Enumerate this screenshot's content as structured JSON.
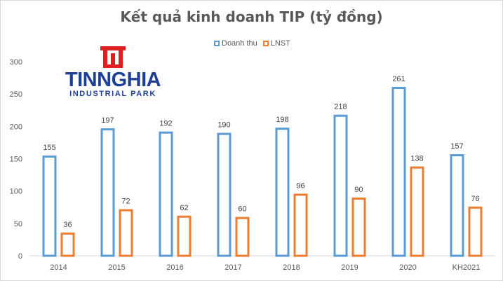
{
  "chart_data": {
    "type": "bar",
    "title": "Kết quả kinh doanh TIP (tỷ đồng)",
    "categories": [
      "2014",
      "2015",
      "2016",
      "2017",
      "2018",
      "2019",
      "2020",
      "KH2021"
    ],
    "series": [
      {
        "name": "Doanh thu",
        "color": "#5b9bd5",
        "values": [
          155,
          197,
          192,
          190,
          198,
          218,
          261,
          157
        ]
      },
      {
        "name": "LNST",
        "color": "#ed7d31",
        "values": [
          36,
          72,
          62,
          60,
          96,
          90,
          138,
          76
        ]
      }
    ],
    "ylim": [
      0,
      300
    ],
    "yticks": [
      0,
      50,
      100,
      150,
      200,
      250,
      300
    ],
    "grid": false,
    "bar_style": "outline",
    "legend_position": "top"
  },
  "logo": {
    "name": "TINNGHIA",
    "subtitle": "INDUSTRIAL PARK",
    "color": "#1d3f95",
    "accent": "#e02020"
  }
}
